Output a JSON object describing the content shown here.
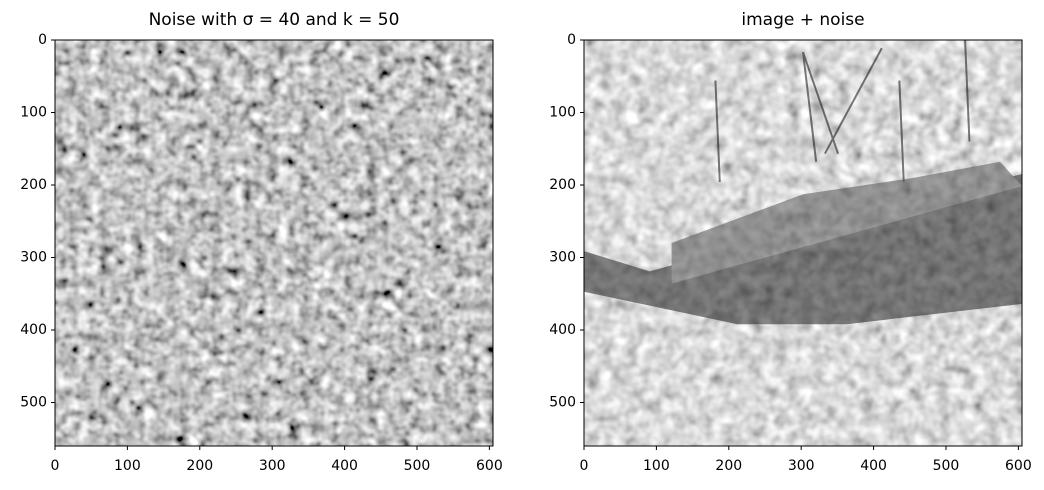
{
  "chart_data": [
    {
      "type": "image",
      "title": "Noise with σ = 40 and k = 50",
      "xlim": [
        0,
        605
      ],
      "ylim": [
        0,
        560
      ],
      "y_inverted": true,
      "xticks": [
        0,
        100,
        200,
        300,
        400,
        500,
        600
      ],
      "yticks": [
        0,
        100,
        200,
        300,
        400,
        500
      ]
    },
    {
      "type": "image",
      "title": "image + noise",
      "xlim": [
        0,
        605
      ],
      "ylim": [
        0,
        560
      ],
      "y_inverted": true,
      "xticks": [
        0,
        100,
        200,
        300,
        400,
        500,
        600
      ],
      "yticks": [
        0,
        100,
        200,
        300,
        400,
        500
      ]
    }
  ]
}
